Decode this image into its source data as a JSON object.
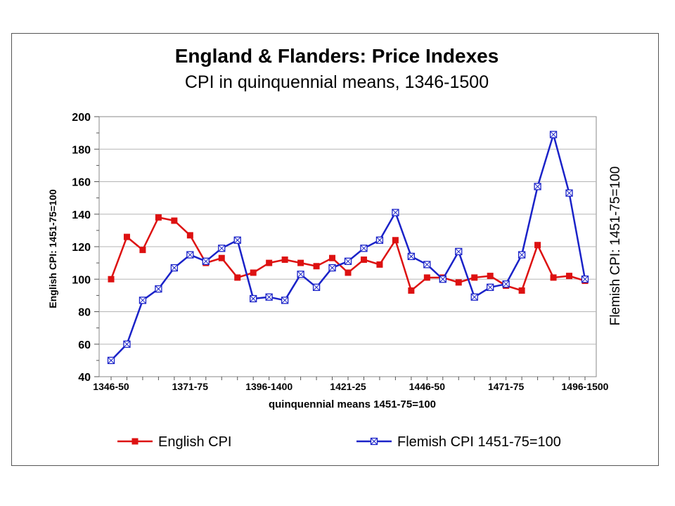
{
  "chart_data": {
    "type": "line",
    "title": "England & Flanders: Price Indexes",
    "subtitle": "CPI in quinquennial means, 1346-1500",
    "xlabel": "quinquennial means  1451-75=100",
    "ylabel": "English CPI:  1451-75=100",
    "ylabel_right": "Flemish CPI:  1451-75=100",
    "ylim": [
      40,
      200
    ],
    "yticks": [
      40,
      60,
      80,
      100,
      120,
      140,
      160,
      180,
      200
    ],
    "xtick_labels": [
      "1346-50",
      "1371-75",
      "1396-1400",
      "1421-25",
      "1446-50",
      "1471-75",
      "1496-1500"
    ],
    "xtick_every": 5,
    "grid": true,
    "legend_position": "bottom",
    "series": [
      {
        "name": "English CPI",
        "color": "#dd1111",
        "marker": "filled-square",
        "values": [
          100,
          126,
          118,
          138,
          136,
          127,
          110,
          113,
          101,
          104,
          110,
          112,
          110,
          108,
          113,
          104,
          112,
          109,
          124,
          93,
          101,
          101,
          98,
          101,
          102,
          96,
          93,
          121,
          101,
          102,
          99
        ]
      },
      {
        "name": "Flemish CPI  1451-75=100",
        "color": "#1a22c8",
        "marker": "hollow-square-x",
        "values": [
          50,
          60,
          87,
          94,
          107,
          115,
          111,
          119,
          124,
          88,
          89,
          87,
          103,
          95,
          107,
          111,
          119,
          124,
          141,
          114,
          109,
          100,
          117,
          89,
          95,
          97,
          115,
          157,
          189,
          153,
          100
        ]
      }
    ]
  }
}
